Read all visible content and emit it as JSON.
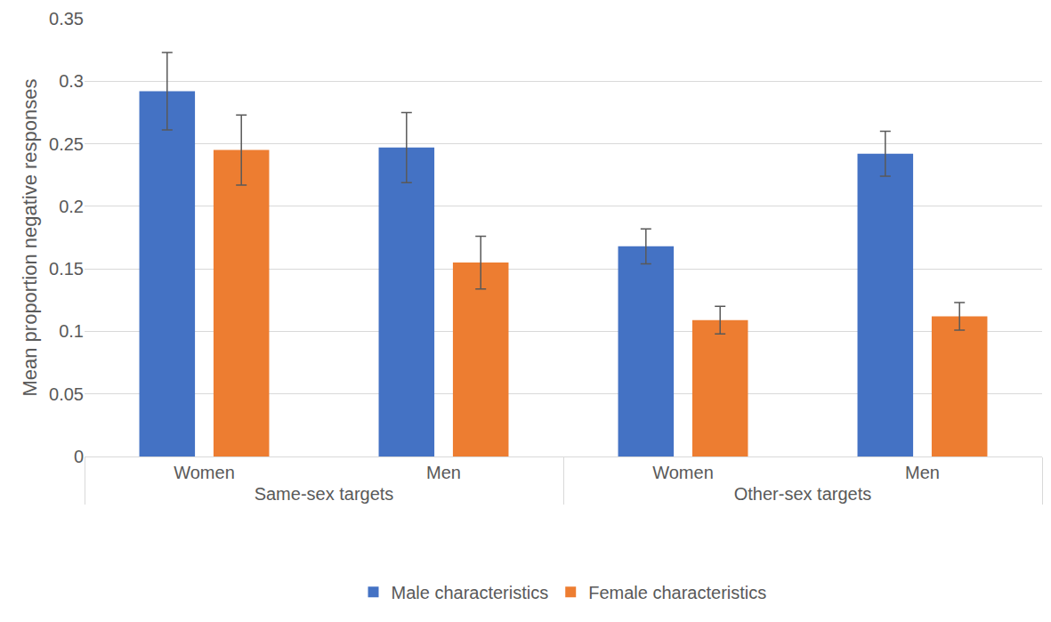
{
  "chart_data": {
    "type": "bar",
    "y_label": "Mean proportion negative responses",
    "categories": [
      [
        "Same-sex targets",
        "Women"
      ],
      [
        "Same-sex targets",
        "Men"
      ],
      [
        "Other-sex targets",
        "Women"
      ],
      [
        "Other-sex targets",
        "Men"
      ]
    ],
    "series": [
      {
        "name": "Male characteristics",
        "color": "#4472c4",
        "values": [
          0.292,
          0.247,
          0.168,
          0.242
        ],
        "errors": [
          0.031,
          0.028,
          0.014,
          0.018
        ]
      },
      {
        "name": "Female characteristics",
        "color": "#ed7d31",
        "values": [
          0.245,
          0.155,
          0.109,
          0.112
        ],
        "errors": [
          0.028,
          0.021,
          0.011,
          0.011
        ]
      }
    ],
    "ylim": [
      0,
      0.35
    ],
    "yticks": [
      0,
      0.05,
      0.1,
      0.15,
      0.2,
      0.25,
      0.3,
      0.35
    ],
    "grid": true,
    "legend": "bottom"
  }
}
